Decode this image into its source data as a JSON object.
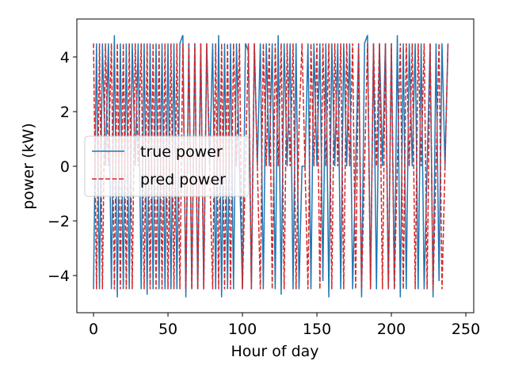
{
  "chart_data": {
    "type": "line",
    "xlabel": "Hour of day",
    "ylabel": "power (kW)",
    "xlim": [
      -11.2,
      255.3
    ],
    "ylim": [
      -5.36,
      5.39
    ],
    "xticks": [
      0,
      50,
      100,
      150,
      200,
      250
    ],
    "yticks": [
      {
        "value": -4,
        "label": "−4"
      },
      {
        "value": -2,
        "label": "−2"
      },
      0,
      2,
      4
    ],
    "legend": "center left",
    "x": [
      0,
      2,
      4,
      6,
      8,
      10,
      12,
      14,
      16,
      18,
      20,
      22,
      24,
      26,
      28,
      30,
      32,
      34,
      36,
      38,
      40,
      42,
      44,
      46,
      48,
      50,
      52,
      54,
      56,
      58,
      60,
      62,
      64,
      66,
      68,
      70,
      72,
      74,
      76,
      78,
      80,
      82,
      84,
      86,
      88,
      90,
      92,
      94,
      96,
      98,
      100,
      102,
      104,
      106,
      108,
      110,
      112,
      114,
      116,
      118,
      120,
      122,
      124,
      126,
      128,
      130,
      132,
      134,
      136,
      138,
      140,
      142,
      144,
      146,
      148,
      150,
      152,
      154,
      156,
      158,
      160,
      162,
      164,
      166,
      168,
      170,
      172,
      174,
      176,
      178,
      180,
      182,
      184,
      186,
      188,
      190,
      192,
      194,
      196,
      198,
      200,
      202,
      204,
      206,
      208,
      210,
      212,
      214,
      216,
      218,
      220,
      222,
      224,
      226,
      228,
      230,
      232,
      234,
      236,
      238
    ],
    "series": [
      {
        "name": "true power",
        "color": "#1f77b4",
        "style": "solid",
        "values": [
          -4.5,
          4.5,
          -4.5,
          4.5,
          0,
          4.5,
          -4.5,
          4.8,
          -4.8,
          4.5,
          -4.5,
          4.5,
          -4.5,
          4.5,
          0,
          4.5,
          -4.5,
          4.5,
          -4.7,
          4.5,
          -4.5,
          4.5,
          -4.5,
          4.5,
          -4.5,
          4.5,
          -4.5,
          4.5,
          -4.5,
          4.5,
          4.8,
          -4.8,
          4.5,
          -4.5,
          4.5,
          -4.5,
          4.5,
          -4.5,
          4.5,
          0,
          4.5,
          -4.5,
          4.8,
          -4.8,
          4.5,
          -4.5,
          4.5,
          -4.5,
          4.5,
          0,
          -4.5,
          4.5,
          4.2,
          -4.5,
          4.5,
          0,
          4.5,
          -4.5,
          4.5,
          0,
          4.5,
          -4.5,
          4.8,
          -4.7,
          4.5,
          0,
          4.5,
          -4.5,
          4.5,
          -4.5,
          0,
          0,
          4.5,
          -4.5,
          4.5,
          0,
          4.5,
          -4.2,
          4.5,
          -4.8,
          4.5,
          0,
          4.5,
          -4.5,
          4.5,
          0,
          4.5,
          -4.5,
          0,
          4.5,
          -4.8,
          4.5,
          4.8,
          -4.5,
          4.5,
          -4.5,
          4.5,
          0,
          4.5,
          -4.5,
          4.5,
          -4.5,
          4.8,
          -4.8,
          4.5,
          -4.5,
          4.5,
          0,
          4.5,
          -4.5,
          4.5,
          -4.5,
          0,
          4.5,
          -4.8,
          4.5,
          -4.2,
          4.5,
          0,
          4.5
        ]
      },
      {
        "name": "pred power",
        "color": "#d62728",
        "style": "dashed",
        "values": [
          4.5,
          -4.5,
          4.5,
          -4.5,
          4.5,
          0,
          4.5,
          -4.5,
          4.5,
          -4.5,
          4.5,
          -4.5,
          4.5,
          -4.5,
          4.5,
          0,
          4.5,
          -4.5,
          4.5,
          -4.5,
          4.5,
          -4.5,
          4.5,
          -4.5,
          4.5,
          -4.5,
          4.5,
          -4.5,
          4.5,
          -4.5,
          4.5,
          -4.5,
          4.5,
          -4.5,
          4.5,
          -4.5,
          4.5,
          -4.5,
          4.5,
          0,
          -4.5,
          4.5,
          -4.5,
          4.5,
          -4.5,
          4.5,
          -4.5,
          4.5,
          0,
          4.5,
          -4.5,
          0,
          4.5,
          -4.5,
          4.5,
          0,
          -4.5,
          4.5,
          0,
          4.5,
          -4.5,
          4.5,
          0,
          4.5,
          -4.5,
          4.5,
          0,
          4.5,
          -4.5,
          1.5,
          4.5,
          0,
          -4.5,
          4.5,
          0,
          4.5,
          -4.5,
          4.5,
          0,
          4.5,
          -4.5,
          4.5,
          0,
          4.5,
          -4.5,
          4.5,
          0,
          4.5,
          -4.5,
          4.5,
          -4.5,
          0,
          4.5,
          -4.5,
          4.5,
          0,
          4.5,
          -4.5,
          4.5,
          -4.5,
          4.5,
          -4.5,
          0,
          4.5,
          -4.5,
          4.5,
          0,
          4.5,
          -4.5,
          4.5,
          0,
          4.5,
          -4.5,
          4.5,
          -4.5,
          0,
          4.5,
          -4.5,
          0,
          4.5
        ]
      }
    ]
  }
}
